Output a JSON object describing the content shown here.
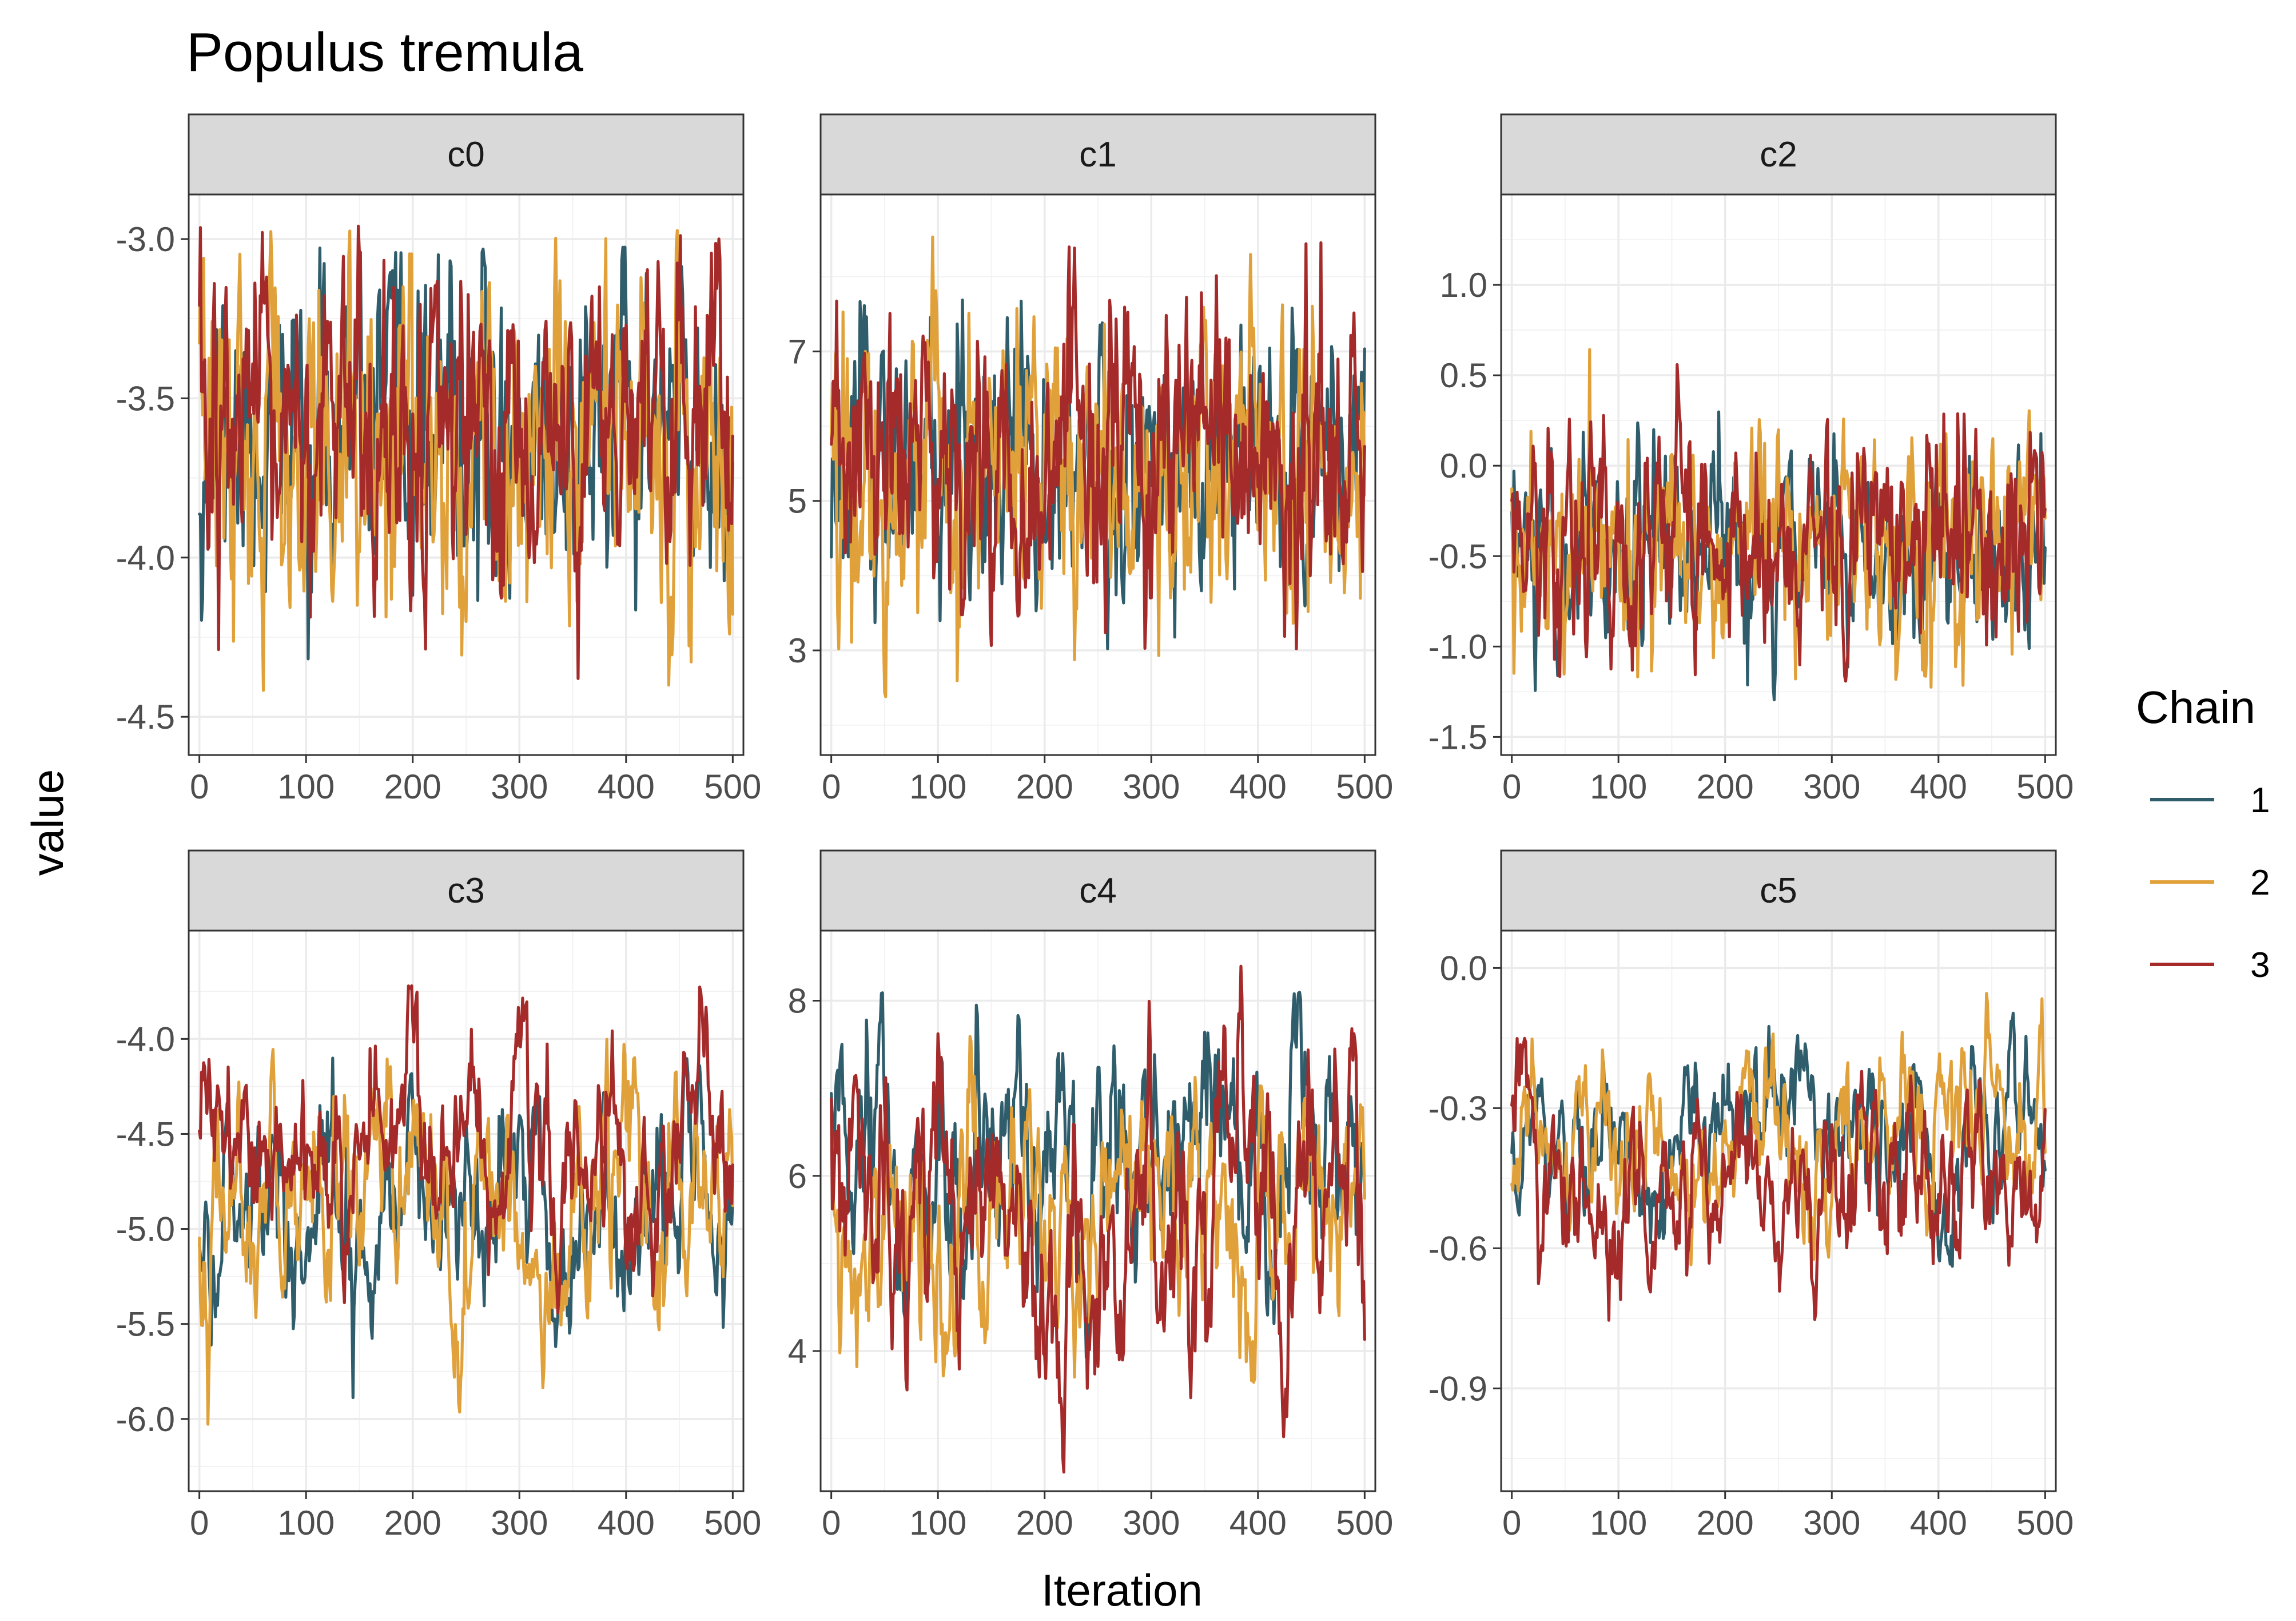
{
  "chart_data": {
    "type": "line",
    "title": "Populus tremula",
    "xlabel": "Iteration",
    "ylabel": "value",
    "legend": {
      "title": "Chain",
      "position": "right",
      "entries": [
        {
          "label": "1",
          "color": "#2f5d6b"
        },
        {
          "label": "2",
          "color": "#e1a13a"
        },
        {
          "label": "3",
          "color": "#a52a2a"
        }
      ]
    },
    "grid": true,
    "facets": [
      {
        "name": "c0",
        "xlim": [
          -10,
          510
        ],
        "ylim": [
          -4.62,
          -2.86
        ],
        "xticks": [
          0,
          100,
          200,
          300,
          400,
          500
        ],
        "yticks": [
          -3.0,
          -3.5,
          -4.0,
          -4.5
        ],
        "ytick_labels": [
          "-3.0",
          "-3.5",
          "-4.0",
          "-4.5"
        ],
        "series": [
          {
            "name": "1",
            "center": -3.62,
            "spread": 0.24,
            "min": -4.4,
            "max": -3.02,
            "smooth": 0.55,
            "seed": 11
          },
          {
            "name": "2",
            "center": -3.65,
            "spread": 0.27,
            "min": -4.55,
            "max": -2.97,
            "smooth": 0.55,
            "seed": 12
          },
          {
            "name": "3",
            "center": -3.62,
            "spread": 0.25,
            "min": -4.45,
            "max": -2.95,
            "smooth": 0.55,
            "seed": 13
          }
        ]
      },
      {
        "name": "c1",
        "xlim": [
          -10,
          510
        ],
        "ylim": [
          1.6,
          9.1
        ],
        "xticks": [
          0,
          100,
          200,
          300,
          400,
          500
        ],
        "yticks": [
          7,
          5,
          3
        ],
        "ytick_labels": [
          "7",
          "5",
          "3"
        ],
        "series": [
          {
            "name": "1",
            "center": 5.5,
            "spread": 0.95,
            "min": 2.0,
            "max": 7.7,
            "smooth": 0.55,
            "seed": 21
          },
          {
            "name": "2",
            "center": 5.4,
            "spread": 1.0,
            "min": 1.6,
            "max": 8.6,
            "smooth": 0.55,
            "seed": 22
          },
          {
            "name": "3",
            "center": 5.5,
            "spread": 0.95,
            "min": 3.0,
            "max": 8.5,
            "smooth": 0.55,
            "seed": 23
          }
        ]
      },
      {
        "name": "c2",
        "xlim": [
          -10,
          510
        ],
        "ylim": [
          -1.6,
          1.5
        ],
        "xticks": [
          0,
          100,
          200,
          300,
          400,
          500
        ],
        "yticks": [
          1.0,
          0.5,
          0.0,
          -0.5,
          -1.0,
          -1.5
        ],
        "ytick_labels": [
          "1.0",
          "0.5",
          "0.0",
          "-0.5",
          "-1.0",
          "-1.5"
        ],
        "series": [
          {
            "name": "1",
            "center": -0.45,
            "spread": 0.27,
            "min": -1.3,
            "max": 0.45,
            "smooth": 0.6,
            "seed": 31
          },
          {
            "name": "2",
            "center": -0.42,
            "spread": 0.3,
            "min": -1.48,
            "max": 1.25,
            "smooth": 0.6,
            "seed": 32
          },
          {
            "name": "3",
            "center": -0.42,
            "spread": 0.3,
            "min": -1.38,
            "max": 1.3,
            "smooth": 0.6,
            "seed": 33
          }
        ]
      },
      {
        "name": "c3",
        "xlim": [
          -10,
          510
        ],
        "ylim": [
          -6.38,
          -3.43
        ],
        "xticks": [
          0,
          100,
          200,
          300,
          400,
          500
        ],
        "yticks": [
          -4.0,
          -4.5,
          -5.0,
          -5.5,
          -6.0
        ],
        "ytick_labels": [
          "-4.0",
          "-4.5",
          "-5.0",
          "-5.5",
          "-6.0"
        ],
        "series": [
          {
            "name": "1",
            "center": -4.85,
            "spread": 0.32,
            "min": -5.95,
            "max": -4.1,
            "smooth": 0.85,
            "seed": 41
          },
          {
            "name": "2",
            "center": -4.85,
            "spread": 0.36,
            "min": -6.25,
            "max": -4.0,
            "smooth": 0.85,
            "seed": 42
          },
          {
            "name": "3",
            "center": -4.65,
            "spread": 0.3,
            "min": -5.7,
            "max": -3.72,
            "smooth": 0.85,
            "seed": 43
          }
        ]
      },
      {
        "name": "c4",
        "xlim": [
          -10,
          510
        ],
        "ylim": [
          2.4,
          8.8
        ],
        "xticks": [
          0,
          100,
          200,
          300,
          400,
          500
        ],
        "yticks": [
          8,
          6,
          4
        ],
        "ytick_labels": [
          "8",
          "6",
          "4"
        ],
        "series": [
          {
            "name": "1",
            "center": 5.8,
            "spread": 0.85,
            "min": 3.2,
            "max": 8.1,
            "smooth": 0.85,
            "seed": 51
          },
          {
            "name": "2",
            "center": 5.8,
            "spread": 0.85,
            "min": 3.6,
            "max": 7.9,
            "smooth": 0.85,
            "seed": 52
          },
          {
            "name": "3",
            "center": 5.4,
            "spread": 0.9,
            "min": 2.6,
            "max": 8.4,
            "smooth": 0.85,
            "seed": 53
          }
        ]
      },
      {
        "name": "c5",
        "xlim": [
          -10,
          510
        ],
        "ylim": [
          -1.12,
          0.08
        ],
        "xticks": [
          0,
          100,
          200,
          300,
          400,
          500
        ],
        "yticks": [
          0.0,
          -0.3,
          -0.6,
          -0.9
        ],
        "ytick_labels": [
          "0.0",
          "-0.3",
          "-0.6",
          "-0.9"
        ],
        "series": [
          {
            "name": "1",
            "center": -0.38,
            "spread": 0.1,
            "min": -0.72,
            "max": 0.0,
            "smooth": 0.85,
            "seed": 61
          },
          {
            "name": "2",
            "center": -0.38,
            "spread": 0.11,
            "min": -0.75,
            "max": -0.03,
            "smooth": 0.85,
            "seed": 62
          },
          {
            "name": "3",
            "center": -0.45,
            "spread": 0.11,
            "min": -1.07,
            "max": -0.15,
            "smooth": 0.85,
            "seed": 63
          }
        ]
      }
    ]
  }
}
